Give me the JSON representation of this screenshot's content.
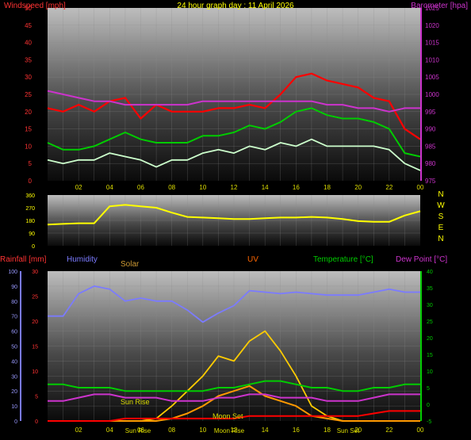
{
  "header": {
    "title": "24 hour graph day : 11 April 2026",
    "left_label": "Windspeed [mph]",
    "right_label": "Barometer [hpa]"
  },
  "legend_bottom": {
    "rainfall": "Rainfall [mm]",
    "humidity": "Humidity",
    "solar": "Solar",
    "uv": "UV",
    "temperature": "Temperature [°C]",
    "dewpoint": "Dew Point [°C]"
  },
  "direction_labels": [
    "N",
    "W",
    "S",
    "E",
    "N"
  ],
  "annotations": {
    "sun_rise": "Sun Rise",
    "sun_set": "Sun Set",
    "moon_set": "Moon Set",
    "moon_rise": "Moon Rise"
  },
  "colors": {
    "wind_gust": "#ff0000",
    "wind_avg": "#00cc00",
    "wind_low": "#ccffcc",
    "barometer": "#cc33cc",
    "direction": "#ffff00",
    "humidity": "#7b7bff",
    "rainfall": "#ff0000",
    "solar": "#ffcc00",
    "uv": "#ff9900",
    "temperature": "#00cc00",
    "dewpoint": "#cc33cc"
  },
  "chart_data": [
    {
      "type": "line",
      "name": "wind-barometer",
      "x_ticks": [
        "02",
        "04",
        "06",
        "08",
        "10",
        "12",
        "14",
        "16",
        "18",
        "20",
        "22",
        "00"
      ],
      "y_left_ticks": [
        "0",
        "5",
        "10",
        "15",
        "20",
        "25",
        "30",
        "35",
        "40",
        "45",
        "50"
      ],
      "y_right_ticks": [
        "975",
        "980",
        "985",
        "990",
        "995",
        "1000",
        "1005",
        "1010",
        "1015",
        "1020",
        "1025"
      ],
      "ylim_left": [
        0,
        50
      ],
      "ylim_right": [
        975,
        1025
      ],
      "hours": [
        0,
        1,
        2,
        3,
        4,
        5,
        6,
        7,
        8,
        9,
        10,
        11,
        12,
        13,
        14,
        15,
        16,
        17,
        18,
        19,
        20,
        21,
        22,
        23,
        24
      ],
      "gust_mph": [
        21,
        20,
        22,
        20,
        23,
        24,
        18,
        22,
        20,
        20,
        20,
        21,
        21,
        22,
        21,
        25,
        30,
        31,
        29,
        28,
        27,
        24,
        23,
        15,
        12
      ],
      "avg_mph": [
        11,
        9,
        9,
        10,
        12,
        14,
        12,
        11,
        11,
        11,
        13,
        13,
        14,
        16,
        15,
        17,
        20,
        21,
        19,
        18,
        18,
        17,
        15,
        8,
        7
      ],
      "low_mph": [
        6,
        5,
        6,
        6,
        8,
        7,
        6,
        4,
        6,
        6,
        8,
        9,
        8,
        10,
        9,
        11,
        10,
        12,
        10,
        10,
        10,
        10,
        9,
        5,
        3
      ],
      "barometer_hpa": [
        1001,
        1000,
        999,
        998,
        998,
        997,
        997,
        997,
        997,
        997,
        998,
        998,
        998,
        998,
        998,
        998,
        998,
        998,
        997,
        997,
        996,
        996,
        995,
        996,
        996
      ]
    },
    {
      "type": "line",
      "name": "wind-direction",
      "y_ticks": [
        "0",
        "90",
        "180",
        "270",
        "360"
      ],
      "ylim": [
        0,
        360
      ],
      "hours": [
        0,
        1,
        2,
        3,
        4,
        5,
        6,
        7,
        8,
        9,
        10,
        11,
        12,
        13,
        14,
        15,
        16,
        17,
        18,
        19,
        20,
        21,
        22,
        23,
        24
      ],
      "direction_deg": [
        150,
        155,
        160,
        160,
        280,
        290,
        280,
        270,
        235,
        205,
        200,
        195,
        190,
        190,
        195,
        200,
        200,
        205,
        200,
        190,
        175,
        170,
        170,
        215,
        245
      ]
    },
    {
      "type": "line",
      "name": "rain-humidity-temperature",
      "y_humidity_ticks": [
        "0",
        "10",
        "20",
        "30",
        "40",
        "50",
        "60",
        "70",
        "80",
        "90",
        "100"
      ],
      "y_rain_ticks": [
        "0",
        "5",
        "10",
        "15",
        "20",
        "25",
        "30"
      ],
      "y_temp_ticks": [
        "-5",
        "0",
        "5",
        "10",
        "15",
        "20",
        "25",
        "30",
        "35",
        "40"
      ],
      "ylim_humidity": [
        0,
        100
      ],
      "ylim_rain": [
        0,
        30
      ],
      "ylim_temp": [
        -5,
        40
      ],
      "hours": [
        0,
        1,
        2,
        3,
        4,
        5,
        6,
        7,
        8,
        9,
        10,
        11,
        12,
        13,
        14,
        15,
        16,
        17,
        18,
        19,
        20,
        21,
        22,
        23,
        24
      ],
      "humidity_pct": [
        70,
        70,
        85,
        90,
        88,
        80,
        82,
        80,
        80,
        74,
        66,
        72,
        77,
        87,
        86,
        85,
        86,
        85,
        84,
        84,
        84,
        86,
        88,
        86,
        86
      ],
      "temperature_c": [
        6,
        6,
        5,
        5,
        5,
        4,
        4,
        4,
        4,
        4,
        4,
        5,
        5,
        6,
        7,
        7,
        6,
        5,
        5,
        4,
        4,
        5,
        5,
        6,
        6
      ],
      "dewpoint_c": [
        1,
        1,
        2,
        3,
        3,
        2,
        2,
        2,
        1,
        1,
        1,
        2,
        2,
        3,
        3,
        2,
        2,
        2,
        1,
        1,
        1,
        2,
        3,
        3,
        3
      ],
      "rainfall_mm": [
        0,
        0,
        0,
        0,
        0,
        0.5,
        0.5,
        0.5,
        0.5,
        0.5,
        0.5,
        0.5,
        0.5,
        1,
        1,
        1,
        1,
        1,
        1,
        1,
        1,
        1.5,
        2,
        2,
        2
      ],
      "solar": [
        0,
        0,
        0,
        0,
        0,
        0,
        0,
        0.5,
        3,
        6,
        9,
        13,
        12,
        16,
        18,
        14,
        9,
        3,
        1,
        0,
        0,
        0,
        0,
        0,
        0
      ],
      "uv": [
        0,
        0,
        0,
        0,
        0,
        0,
        0,
        0,
        0.5,
        1.5,
        3,
        5,
        6,
        7,
        5,
        4,
        3,
        1,
        0.5,
        0,
        0,
        0,
        0,
        0,
        0
      ]
    }
  ]
}
